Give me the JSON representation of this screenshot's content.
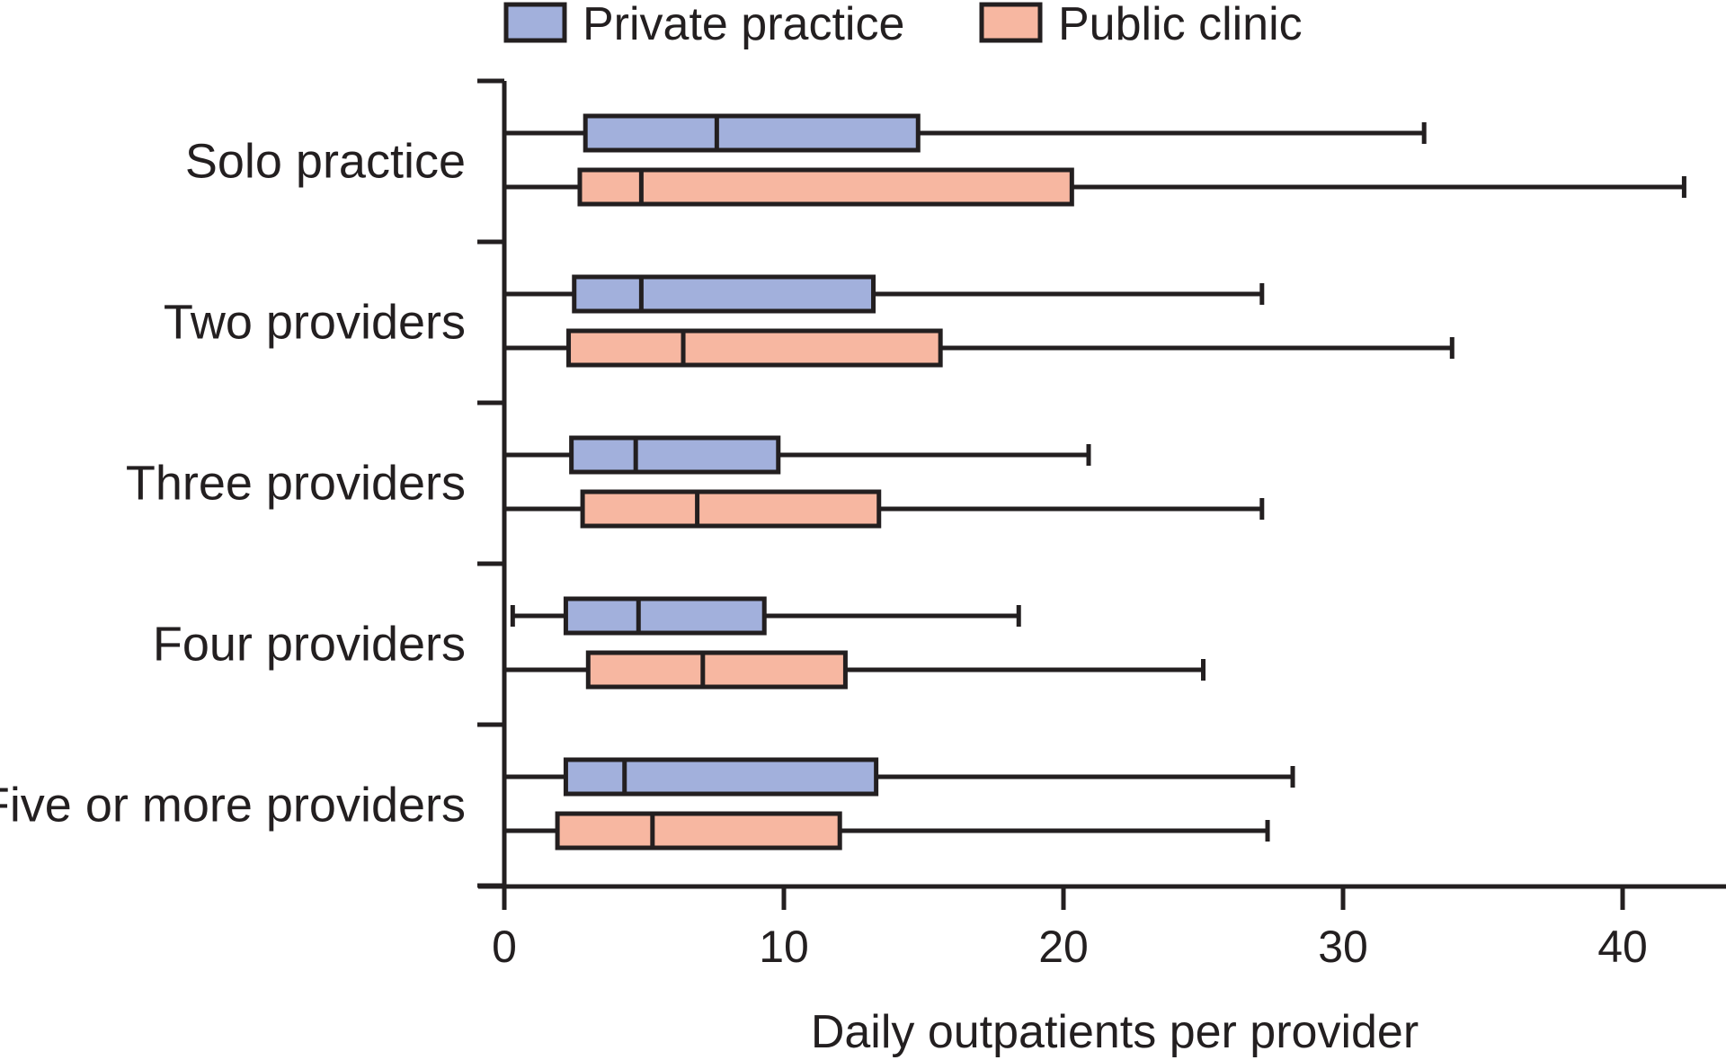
{
  "chart_data": {
    "type": "boxplot",
    "orientation": "horizontal",
    "title": "",
    "xlabel": "Daily outpatients per provider",
    "ylabel": "",
    "xlim": [
      0,
      43
    ],
    "xticks": [
      0,
      10,
      20,
      30,
      40
    ],
    "grid": false,
    "legend_position": "top",
    "categories": [
      "Solo practice",
      "Two providers",
      "Three providers",
      "Four providers",
      "Five or more providers"
    ],
    "series": [
      {
        "name": "Private practice",
        "color": "#a2b0dc",
        "boxes": [
          {
            "min": 0,
            "q1": 2.9,
            "median": 7.6,
            "q3": 14.8,
            "max": 32.9
          },
          {
            "min": 0,
            "q1": 2.5,
            "median": 4.9,
            "q3": 13.2,
            "max": 27.1
          },
          {
            "min": 0,
            "q1": 2.4,
            "median": 4.7,
            "q3": 9.8,
            "max": 20.9
          },
          {
            "min": 0.3,
            "q1": 2.2,
            "median": 4.8,
            "q3": 9.3,
            "max": 18.4
          },
          {
            "min": 0,
            "q1": 2.2,
            "median": 4.3,
            "q3": 13.3,
            "max": 28.2
          }
        ]
      },
      {
        "name": "Public clinic",
        "color": "#f7b7a1",
        "boxes": [
          {
            "min": 0,
            "q1": 2.7,
            "median": 4.9,
            "q3": 20.3,
            "max": 42.2
          },
          {
            "min": 0,
            "q1": 2.3,
            "median": 6.4,
            "q3": 15.6,
            "max": 33.9
          },
          {
            "min": 0,
            "q1": 2.8,
            "median": 6.9,
            "q3": 13.4,
            "max": 27.1
          },
          {
            "min": 0,
            "q1": 3.0,
            "median": 7.1,
            "q3": 12.2,
            "max": 25.0
          },
          {
            "min": 0,
            "q1": 1.9,
            "median": 5.3,
            "q3": 12.0,
            "max": 27.3
          }
        ]
      }
    ]
  }
}
